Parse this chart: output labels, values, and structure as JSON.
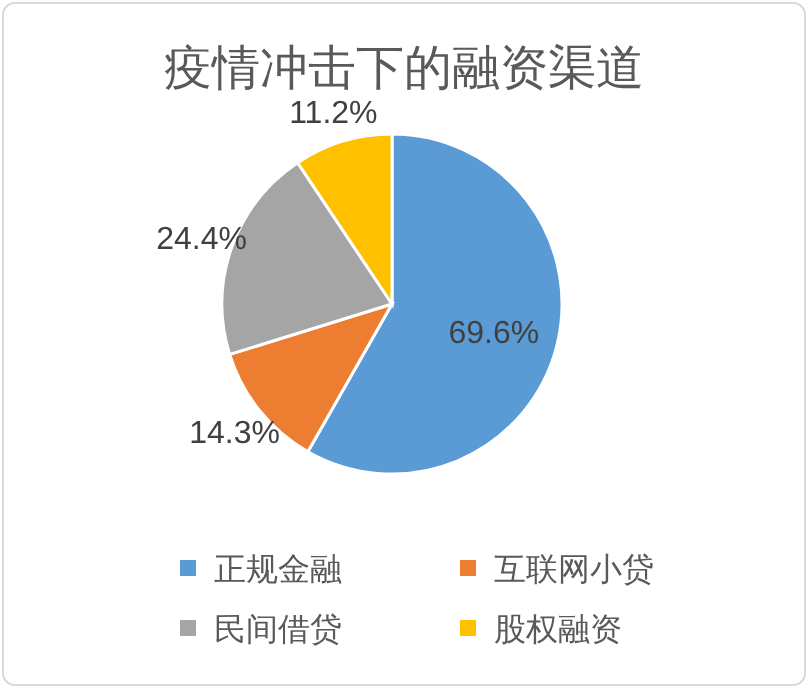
{
  "chart_data": {
    "type": "pie",
    "title": "疫情冲击下的融资渠道",
    "categories": [
      "正规金融",
      "互联网小贷",
      "民间借贷",
      "股权融资"
    ],
    "values": [
      69.6,
      14.3,
      24.4,
      11.2
    ],
    "value_labels": [
      "69.6%",
      "14.3%",
      "24.4%",
      "11.2%"
    ],
    "colors": [
      "#5b9bd5",
      "#ed7d31",
      "#a5a5a5",
      "#ffc000"
    ],
    "legend": "bottom"
  }
}
